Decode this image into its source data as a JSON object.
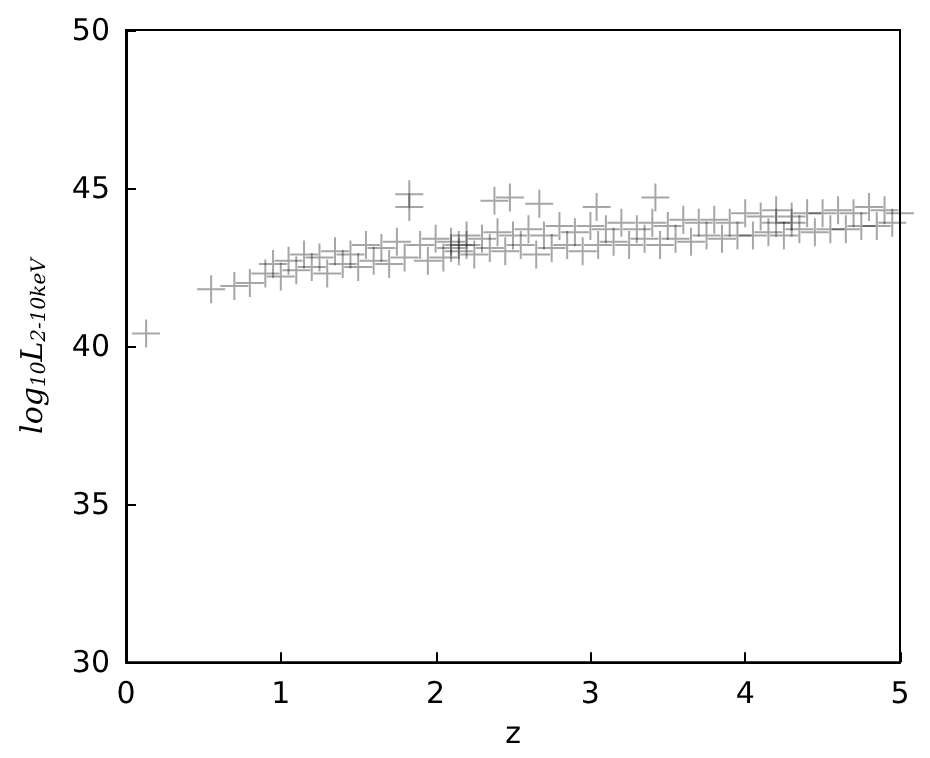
{
  "chart_data": {
    "type": "scatter",
    "xlabel": "z",
    "ylabel": "log$_{10}$L$_{2-10keV}$",
    "xlim": [
      0,
      5
    ],
    "xticks": [
      0,
      1,
      2,
      3,
      4,
      5
    ],
    "ylim": [
      30,
      50
    ],
    "yticks": [
      30,
      35,
      40,
      45,
      50
    ],
    "marker": "cross",
    "series": [
      {
        "color": "#000000",
        "x": [
          0.13,
          0.55,
          0.7,
          0.8,
          1.83,
          1.83,
          2.38,
          2.48,
          2.67,
          3.04,
          3.42,
          0.9,
          0.95,
          1.0,
          1.05,
          1.1,
          1.15,
          1.2,
          1.25,
          1.3,
          1.35,
          1.4,
          1.45,
          1.5,
          1.55,
          1.6,
          1.65,
          1.7,
          1.75,
          1.8,
          1.9,
          1.95,
          2.0,
          2.05,
          2.1,
          2.15,
          2.2,
          2.25,
          2.3,
          2.35,
          2.4,
          2.45,
          2.5,
          2.55,
          2.6,
          2.65,
          2.7,
          2.75,
          2.8,
          2.85,
          2.9,
          2.95,
          3.0,
          3.05,
          3.1,
          3.15,
          3.2,
          3.25,
          3.3,
          3.35,
          3.4,
          3.45,
          3.5,
          3.55,
          3.6,
          3.65,
          3.7,
          3.75,
          3.8,
          3.85,
          3.9,
          3.95,
          4.0,
          4.05,
          4.1,
          4.15,
          4.2,
          4.25,
          4.3,
          4.35,
          4.4,
          4.45,
          4.5,
          4.55,
          4.6,
          4.65,
          4.7,
          4.75,
          4.8,
          4.85,
          4.9,
          4.95,
          5.0,
          2.1,
          2.2,
          2.15,
          4.2,
          4.3
        ],
        "values": [
          40.4,
          41.8,
          41.9,
          42.0,
          44.8,
          44.4,
          44.6,
          44.7,
          44.5,
          44.4,
          44.7,
          42.3,
          42.6,
          42.2,
          42.7,
          42.4,
          42.9,
          42.5,
          42.8,
          42.3,
          43.0,
          42.6,
          42.9,
          42.5,
          43.2,
          42.7,
          43.1,
          42.6,
          43.3,
          42.8,
          43.2,
          42.7,
          43.4,
          42.8,
          43.3,
          43.0,
          43.5,
          42.9,
          43.4,
          43.1,
          43.6,
          43.0,
          43.5,
          43.2,
          43.7,
          42.9,
          43.5,
          43.1,
          43.8,
          43.2,
          43.6,
          43.0,
          43.8,
          43.2,
          43.7,
          43.3,
          43.9,
          43.2,
          43.7,
          43.4,
          43.9,
          43.2,
          43.8,
          43.4,
          44.0,
          43.3,
          43.9,
          43.5,
          44.0,
          43.4,
          43.9,
          43.5,
          44.2,
          43.5,
          44.1,
          43.6,
          44.3,
          43.5,
          44.1,
          43.7,
          44.2,
          43.6,
          44.2,
          43.7,
          44.3,
          43.7,
          44.2,
          43.8,
          44.4,
          43.8,
          44.3,
          43.9,
          44.2,
          43.1,
          43.2,
          43.2,
          43.9,
          43.9
        ]
      }
    ]
  }
}
